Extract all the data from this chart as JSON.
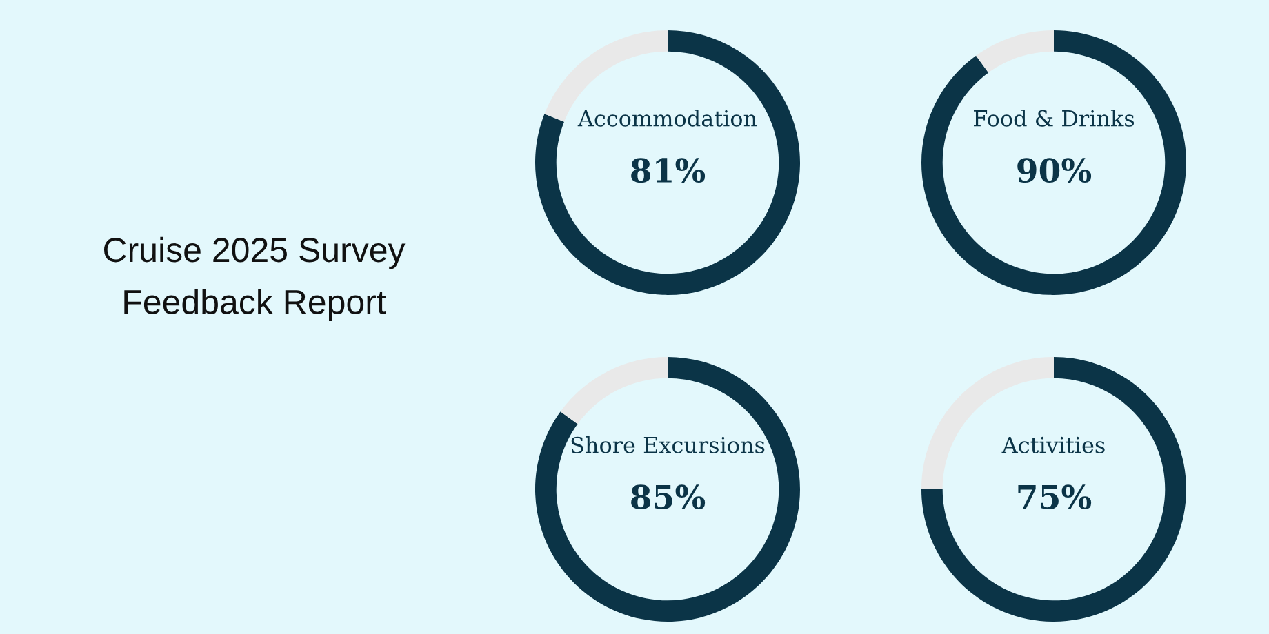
{
  "chart_data": [
    {
      "type": "other",
      "title": "Cruise 2025 Survey Feedback Report"
    },
    {
      "type": "donut",
      "categories": [
        "Accommodation",
        null
      ],
      "values": [
        81,
        19
      ],
      "colors": [
        "#0b3447",
        "#e9e9e9"
      ],
      "value_labels": [
        "81%",
        null
      ]
    },
    {
      "type": "donut",
      "categories": [
        "Food & Drinks",
        null
      ],
      "values": [
        90,
        10
      ],
      "colors": [
        "#0b3447",
        "#e9e9e9"
      ],
      "value_labels": [
        "90%",
        null
      ]
    },
    {
      "type": "donut",
      "categories": [
        "Shore Excursions",
        null
      ],
      "values": [
        85,
        15
      ],
      "colors": [
        "#0b3447",
        "#e9e9e9"
      ],
      "value_labels": [
        "85%",
        null
      ]
    },
    {
      "type": "donut",
      "categories": [
        "Activities",
        null
      ],
      "values": [
        75,
        25
      ],
      "colors": [
        "#0b3447",
        "#e9e9e9"
      ],
      "value_labels": [
        "75%",
        null
      ]
    }
  ]
}
